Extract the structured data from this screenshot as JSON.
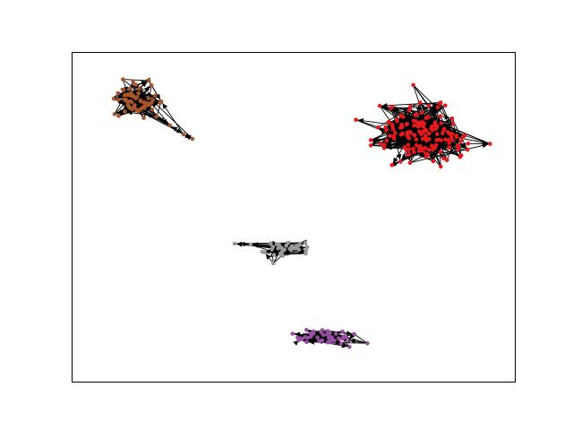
{
  "figure": {
    "background": "#ffffff",
    "frame_color": "#000000",
    "edge_color": "#000000"
  },
  "clusters": [
    {
      "name": "brown-cluster",
      "color": "#a65628",
      "approx_nodes": 60,
      "shape": "dense-blob-with-tail"
    },
    {
      "name": "red-cluster",
      "color": "#e41a1c",
      "approx_nodes": 160,
      "shape": "dense-blob"
    },
    {
      "name": "gray-cluster",
      "color": "#999999",
      "approx_nodes": 35,
      "shape": "elongated"
    },
    {
      "name": "purple-cluster",
      "color": "#984ea3",
      "approx_nodes": 45,
      "shape": "elongated"
    }
  ]
}
